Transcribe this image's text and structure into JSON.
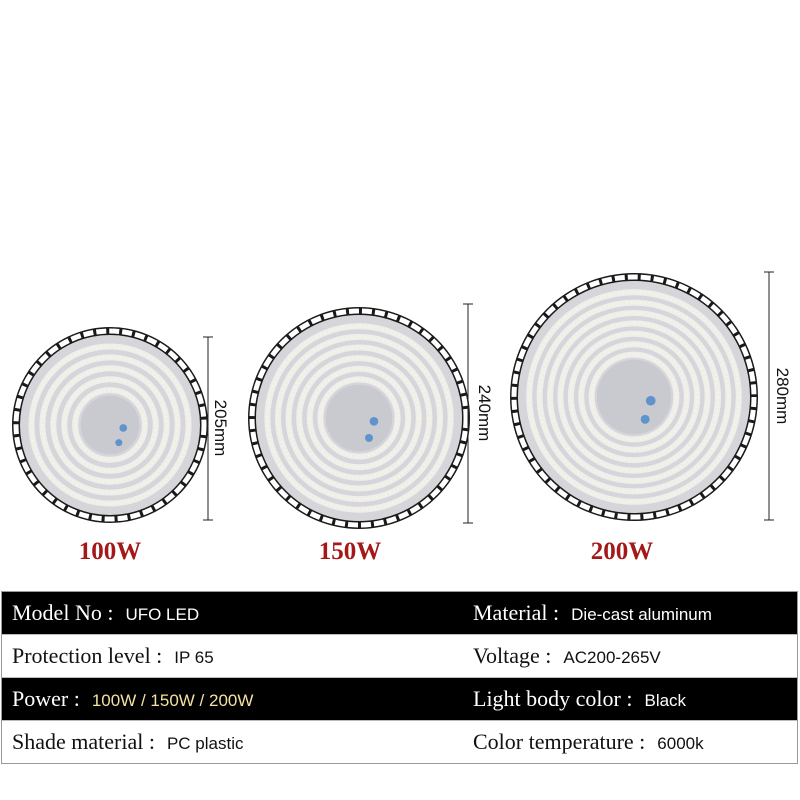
{
  "products": [
    {
      "power": "100W",
      "diameter": "205mm"
    },
    {
      "power": "150W",
      "diameter": "240mm"
    },
    {
      "power": "200W",
      "diameter": "280mm"
    }
  ],
  "specs": [
    [
      {
        "label": "Model No :",
        "value": "UFO LED"
      },
      {
        "label": "Material :",
        "value": "Die-cast aluminum"
      }
    ],
    [
      {
        "label": "Protection level :",
        "value": "IP 65"
      },
      {
        "label": "Voltage :",
        "value": "AC200-265V"
      }
    ],
    [
      {
        "label": "Power :",
        "value": "100W / 150W / 200W"
      },
      {
        "label": "Light body color :",
        "value": "Black"
      }
    ],
    [
      {
        "label": "Shade material :",
        "value": "PC plastic"
      },
      {
        "label": "Color temperature :",
        "value": "6000k"
      }
    ]
  ],
  "colors": {
    "power_label": "#a41818",
    "highlight_value": "#f3e1a0",
    "lamp_body": "#1a1a1a",
    "lamp_face": "#d6d6da"
  }
}
